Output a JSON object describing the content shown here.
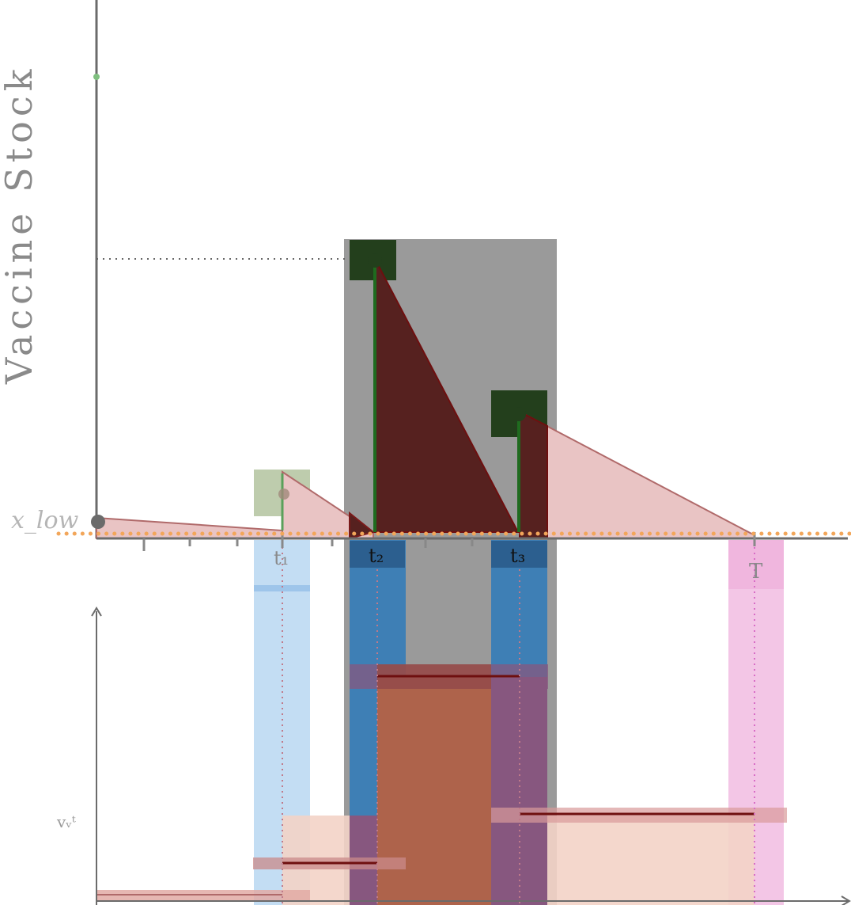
{
  "labels": {
    "y_axis": "Vaccine Stock",
    "threshold": "x_low",
    "t1": "t₁",
    "t2": "t₂",
    "t3": "t₃",
    "T": "T",
    "lower_y": "vᵥᵗ"
  },
  "colors": {
    "stock_line": "#b06a6a",
    "stock_fill_light": "#e9c4c4",
    "stock_fill_dark": "#56211f",
    "threshold": "#f2a65a",
    "grey_panel": "#9a9a9a",
    "green_box": "#233f1c",
    "green_box_light": "#aebf98",
    "blue_light": "#c3ddf3",
    "blue_dark": "#3e7fb5",
    "pink": "#f3c6e6",
    "orange_bar": "#ae634b",
    "peach_bar": "#f3d3c6",
    "purple_bar": "#87577f",
    "axis": "#6b6b6b"
  },
  "icons": {
    "delivery_marker": "filled-circle",
    "axis_arrow": "arrowhead"
  }
}
